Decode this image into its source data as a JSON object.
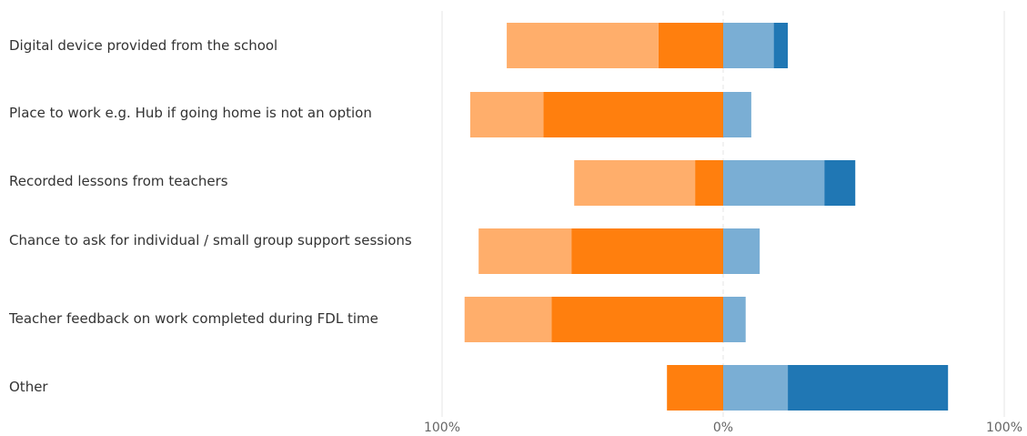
{
  "chart_data": {
    "type": "bar",
    "orientation": "horizontal",
    "stacking": "diverging",
    "categories": [
      "Digital device provided from the school",
      "Place to work e.g. Hub if going home is not an option",
      "Recorded lessons from teachers",
      "Chance to ask for individual / small group support sessions",
      "Teacher feedback on work completed during FDL time",
      "Other"
    ],
    "series": [
      {
        "side": "negative",
        "color": "#ff7f0e",
        "values": [
          23,
          64,
          10,
          54,
          61,
          20
        ]
      },
      {
        "side": "negative",
        "color": "#ffae6b",
        "values": [
          54,
          26,
          43,
          33,
          31,
          0
        ]
      },
      {
        "side": "positive",
        "color": "#7aaed4",
        "values": [
          18,
          10,
          36,
          13,
          8,
          23
        ]
      },
      {
        "side": "positive",
        "color": "#2077b4",
        "values": [
          5,
          0,
          11,
          0,
          0,
          57
        ]
      }
    ],
    "xlim": [
      -100,
      100
    ],
    "ticks": [
      {
        "value": -100,
        "label": "100%"
      },
      {
        "value": 0,
        "label": "0%"
      },
      {
        "value": 100,
        "label": "100%"
      }
    ],
    "grid": true,
    "legend": "none"
  }
}
